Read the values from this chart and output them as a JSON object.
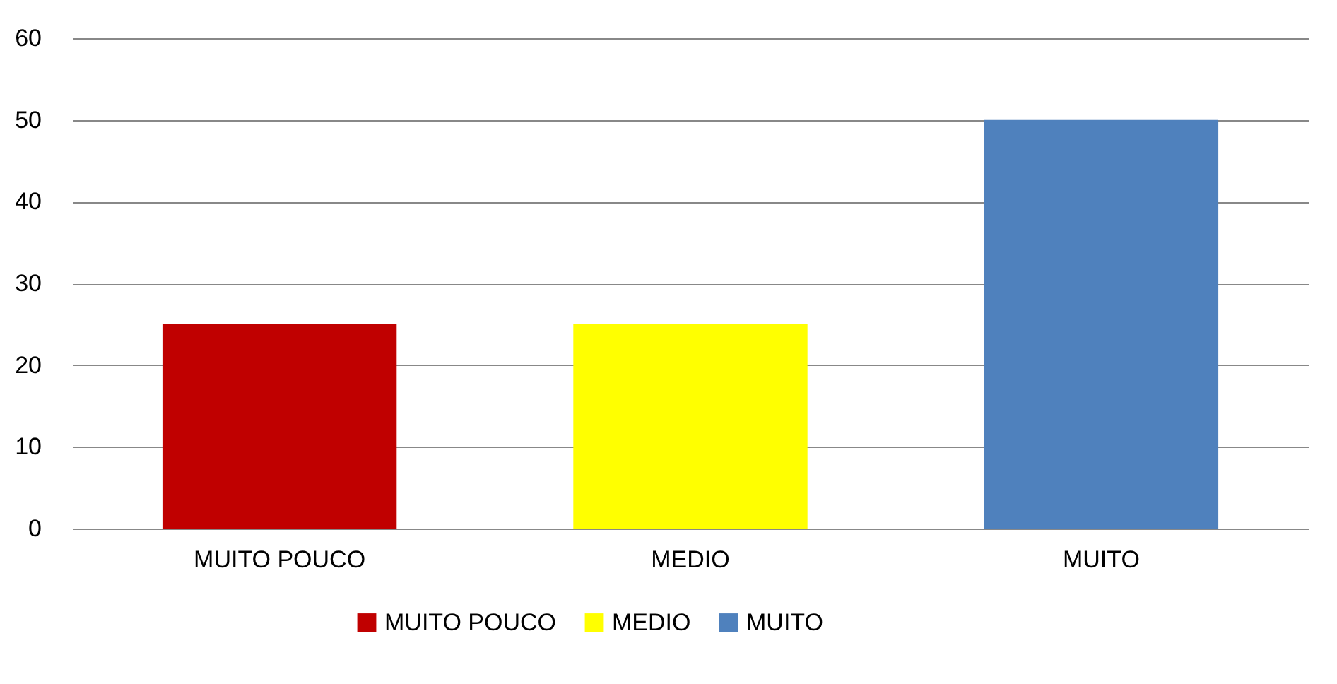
{
  "chart_data": {
    "type": "bar",
    "categories": [
      "MUITO POUCO",
      "MEDIO",
      "MUITO"
    ],
    "series": [
      {
        "name": "MUITO POUCO",
        "color": "#c00000",
        "values": [
          25,
          null,
          null
        ]
      },
      {
        "name": "MEDIO",
        "color": "#ffff00",
        "values": [
          null,
          25,
          null
        ]
      },
      {
        "name": "MUITO",
        "color": "#4f81bd",
        "values": [
          null,
          null,
          50
        ]
      }
    ],
    "ylim": [
      0,
      60
    ],
    "yticks": [
      0,
      10,
      20,
      30,
      40,
      50,
      60
    ],
    "grid": "y",
    "legend": "bottom"
  }
}
